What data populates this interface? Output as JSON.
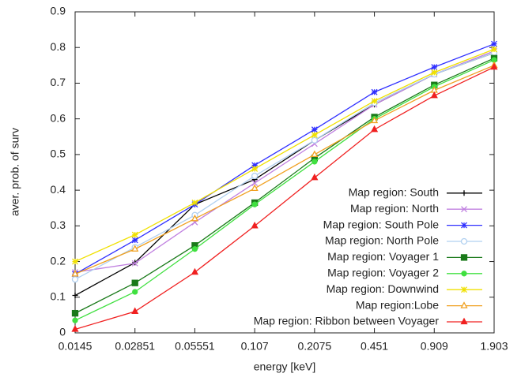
{
  "chart_data": {
    "type": "line",
    "x_label": "energy [keV]",
    "y_label": "aver. prob. of surv",
    "categories": [
      "0.0145",
      "0.02851",
      "0.05551",
      "0.107",
      "0.2075",
      "0.451",
      "0.909",
      "1.903"
    ],
    "ylim": [
      0,
      0.9
    ],
    "yticks": [
      0,
      0.1,
      0.2,
      0.3,
      0.4,
      0.5,
      0.6,
      0.7,
      0.8,
      0.9
    ],
    "legend": "lower-right",
    "series": [
      {
        "name": "Map region: South",
        "color": "#000000",
        "marker": "plus",
        "values": [
          0.105,
          0.197,
          0.36,
          0.43,
          0.54,
          0.64,
          0.725,
          0.785
        ]
      },
      {
        "name": "Map region: North",
        "color": "#c080e0",
        "marker": "cross",
        "values": [
          0.17,
          0.195,
          0.31,
          0.42,
          0.53,
          0.64,
          0.725,
          0.79
        ]
      },
      {
        "name": "Map region: South Pole",
        "color": "#3030ff",
        "marker": "star",
        "values": [
          0.165,
          0.26,
          0.36,
          0.47,
          0.57,
          0.675,
          0.745,
          0.81
        ]
      },
      {
        "name": "Map region: North Pole",
        "color": "#b0d0f0",
        "marker": "circle-open",
        "values": [
          0.15,
          0.24,
          0.33,
          0.44,
          0.54,
          0.645,
          0.725,
          0.785
        ]
      },
      {
        "name": "Map region: Voyager 1",
        "color": "#1a7a1a",
        "marker": "square",
        "values": [
          0.055,
          0.14,
          0.245,
          0.365,
          0.49,
          0.605,
          0.695,
          0.77
        ]
      },
      {
        "name": "Map region: Voyager 2",
        "color": "#40e040",
        "marker": "circle",
        "values": [
          0.035,
          0.115,
          0.235,
          0.36,
          0.48,
          0.6,
          0.69,
          0.765
        ]
      },
      {
        "name": "Map region: Downwind",
        "color": "#f0e000",
        "marker": "star",
        "values": [
          0.2,
          0.275,
          0.365,
          0.46,
          0.555,
          0.65,
          0.73,
          0.795
        ]
      },
      {
        "name": "Map region:Lobe",
        "color": "#f0a020",
        "marker": "triangle-open",
        "values": [
          0.165,
          0.235,
          0.32,
          0.405,
          0.5,
          0.595,
          0.68,
          0.75
        ]
      },
      {
        "name": "Map region: Ribbon between Voyager",
        "color": "#f02020",
        "marker": "triangle",
        "values": [
          0.01,
          0.06,
          0.17,
          0.3,
          0.435,
          0.57,
          0.665,
          0.745
        ]
      }
    ]
  }
}
